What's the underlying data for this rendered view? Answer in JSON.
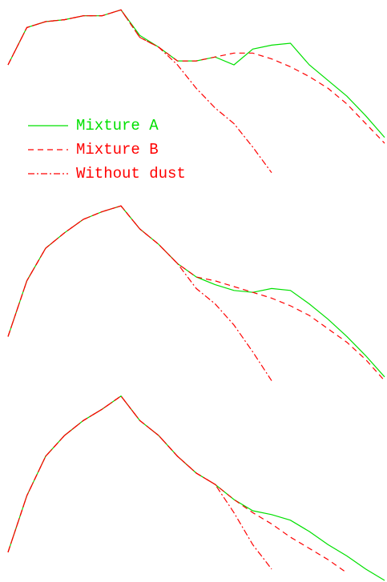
{
  "chart_data": [
    {
      "type": "line",
      "legend": "center-left",
      "xlim": [
        0,
        100
      ],
      "ylim": [
        0,
        100
      ],
      "x": [
        0,
        5,
        10,
        15,
        20,
        25,
        30,
        35,
        40,
        45,
        50,
        55,
        60,
        65,
        70,
        75,
        80,
        85,
        90,
        95,
        100
      ],
      "series": [
        {
          "name": "Mixture A",
          "color": "#00e000",
          "dash": "solid",
          "values": [
            69,
            88,
            91,
            92,
            94,
            94,
            97,
            84,
            78,
            71,
            71,
            73,
            69,
            77,
            79,
            80,
            69,
            61,
            53,
            43,
            32
          ]
        },
        {
          "name": "Mixture B",
          "color": "#ff0000",
          "dash": "dashed",
          "values": [
            69,
            88,
            91,
            92,
            94,
            94,
            97,
            83,
            78,
            71,
            71,
            73,
            75,
            75,
            72,
            68,
            63,
            57,
            49,
            39,
            29
          ]
        },
        {
          "name": "Without dust",
          "color": "#ff0000",
          "dash": "dashdot",
          "values": [
            69,
            88,
            91,
            92,
            94,
            94,
            97,
            83,
            78,
            69,
            57,
            47,
            39,
            27,
            14,
            null,
            null,
            null,
            null,
            null,
            null
          ]
        }
      ]
    },
    {
      "type": "line",
      "xlim": [
        0,
        100
      ],
      "ylim": [
        0,
        100
      ],
      "x": [
        0,
        5,
        10,
        15,
        20,
        25,
        30,
        35,
        40,
        45,
        50,
        55,
        60,
        65,
        70,
        75,
        80,
        85,
        90,
        95,
        100
      ],
      "series": [
        {
          "name": "Mixture A",
          "color": "#00e000",
          "dash": "solid",
          "values": [
            29,
            58,
            75,
            83,
            90,
            94,
            97,
            85,
            77,
            67,
            60,
            56,
            53,
            52,
            54,
            53,
            46,
            38,
            29,
            19,
            8
          ]
        },
        {
          "name": "Mixture B",
          "color": "#ff0000",
          "dash": "dashed",
          "values": [
            29,
            58,
            75,
            83,
            90,
            94,
            97,
            85,
            77,
            67,
            60,
            58,
            55,
            52,
            49,
            45,
            40,
            33,
            26,
            17,
            6
          ]
        },
        {
          "name": "Without dust",
          "color": "#ff0000",
          "dash": "dashdot",
          "values": [
            29,
            58,
            75,
            83,
            90,
            94,
            97,
            85,
            77,
            67,
            54,
            46,
            35,
            21,
            6,
            null,
            null,
            null,
            null,
            null,
            null
          ]
        }
      ]
    },
    {
      "type": "line",
      "xlim": [
        0,
        100
      ],
      "ylim": [
        0,
        100
      ],
      "x": [
        0,
        5,
        10,
        15,
        20,
        25,
        30,
        35,
        40,
        45,
        50,
        55,
        60,
        65,
        70,
        75,
        80,
        85,
        90,
        95,
        100
      ],
      "series": [
        {
          "name": "Mixture A",
          "color": "#00e000",
          "dash": "solid",
          "values": [
            15,
            45,
            66,
            77,
            85,
            91,
            98,
            85,
            77,
            66,
            57,
            51,
            43,
            37,
            35,
            32,
            26,
            19,
            13,
            6,
            0
          ]
        },
        {
          "name": "Mixture B",
          "color": "#ff0000",
          "dash": "dashed",
          "values": [
            15,
            45,
            66,
            77,
            85,
            91,
            98,
            85,
            77,
            66,
            57,
            51,
            43,
            36,
            30,
            23,
            17,
            11,
            4,
            null,
            null
          ]
        },
        {
          "name": "Without dust",
          "color": "#ff0000",
          "dash": "dashdot",
          "values": [
            15,
            45,
            66,
            77,
            85,
            91,
            98,
            85,
            77,
            66,
            57,
            51,
            36,
            19,
            6,
            null,
            null,
            null,
            null,
            null,
            null
          ]
        }
      ]
    }
  ]
}
